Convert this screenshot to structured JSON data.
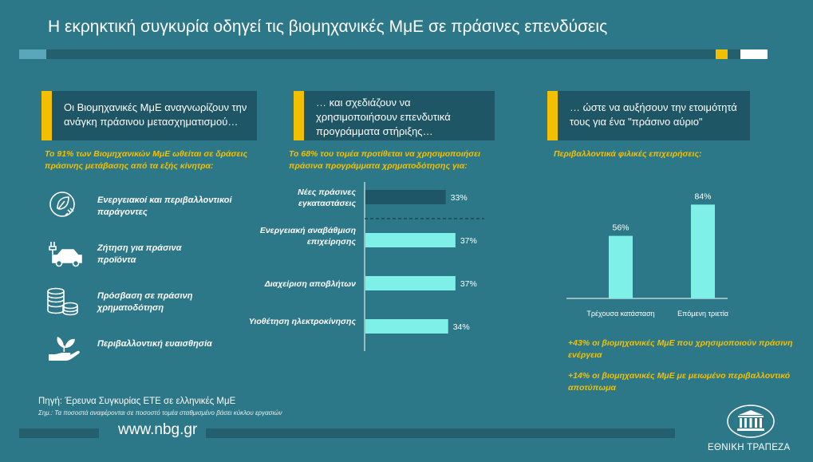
{
  "title": "Η εκρηκτική συγκυρία οδηγεί τις βιομηχανικές ΜμΕ σε πράσινες επενδύσεις",
  "columns": [
    {
      "header": "Οι Βιομηχανικές ΜμΕ αναγνωρίζουν την ανάγκη πράσινου μετασχηματισμού…",
      "subtitle": "Το 91% των Βιομηχανικών ΜμΕ ωθείται σε δράσεις πράσινης μετάβασης από τα εξής κίνητρα:"
    },
    {
      "header": "… και σχεδιάζουν να χρησιμοποιήσουν επενδυτικά προγράμματα στήριξης…",
      "subtitle": "Το 68% του τομέα προτίθεται να χρησιμοποιήσει πράσινα προγράμματα χρηματοδότησης για:"
    },
    {
      "header": "… ώστε να αυξήσουν την ετοιμότητά τους για ένα \"πράσινο αύριο\"",
      "subtitle": "Περιβαλλοντικά φιλικές επιχειρήσεις:"
    }
  ],
  "drivers": [
    {
      "label": "Ενεργειακοί και περιβαλλοντικοί παράγοντες",
      "icon": "leaf-plug-icon"
    },
    {
      "label": "Ζήτηση για πράσινα προϊόντα",
      "icon": "electric-car-icon"
    },
    {
      "label": "Πρόσβαση σε πράσινη χρηματοδότηση",
      "icon": "coins-icon"
    },
    {
      "label": "Περιβαλλοντική ευαισθησία",
      "icon": "hand-plant-icon"
    }
  ],
  "chart_data": [
    {
      "type": "bar",
      "orientation": "horizontal",
      "categories": [
        "Νέες πράσινες εγκαταστάσεις",
        "Ενεργειακή αναβάθμιση επιχείρησης",
        "Διαχείριση αποβλήτων",
        "Υιοθέτηση ηλεκτροκίνησης"
      ],
      "values": [
        33,
        37,
        37,
        34
      ],
      "value_labels": [
        "33%",
        "37%",
        "37%",
        "34%"
      ],
      "colors": [
        "#1f5665",
        "#7ff0e8",
        "#7ff0e8",
        "#7ff0e8"
      ],
      "xlim": [
        0,
        100
      ]
    },
    {
      "type": "bar",
      "orientation": "vertical",
      "categories": [
        "Τρέχουσα κατάσταση",
        "Επόμενη τριετία"
      ],
      "values": [
        56,
        84
      ],
      "value_labels": [
        "56%",
        "84%"
      ],
      "color": "#7ff0e8",
      "ylim": [
        0,
        100
      ]
    }
  ],
  "notes": [
    "+43% οι βιομηχανικές ΜμΕ που χρησιμοποιούν πράσινη ενέργεια",
    "+14% οι βιομηχανικές ΜμΕ με μειωμένο περιβαλλοντικό αποτύπωμα"
  ],
  "footer": {
    "source": "Πηγή: Έρευνα Συγκυρίας ΕΤΕ σε ελληνικές ΜμΕ",
    "note": "Σημ.: Τα ποσοστά αναφέρονται σε ποσοστό τομέα σταθμισμένο βάσει κύκλου εργασιών",
    "url": "www.nbg.gr",
    "brand": "ΕΘΝΙΚΗ ΤΡΑΠΕΖΑ"
  },
  "colors": {
    "background": "#2d7888",
    "dark": "#1f5665",
    "accent": "#f3c000",
    "bar": "#7ff0e8"
  }
}
